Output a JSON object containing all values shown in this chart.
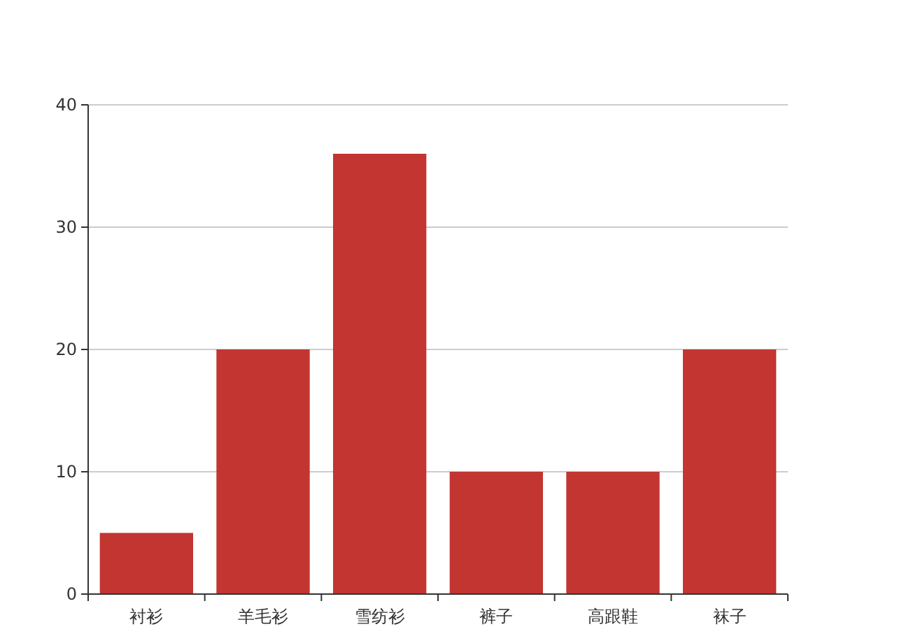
{
  "chart_data": {
    "type": "bar",
    "categories": [
      "衬衫",
      "羊毛衫",
      "雪纺衫",
      "裤子",
      "高跟鞋",
      "袜子"
    ],
    "values": [
      5,
      20,
      36,
      10,
      10,
      20
    ],
    "color": "#c23531",
    "ylim": [
      0,
      40
    ],
    "yticks": [
      0,
      10,
      20,
      30,
      40
    ],
    "grid": "y"
  }
}
